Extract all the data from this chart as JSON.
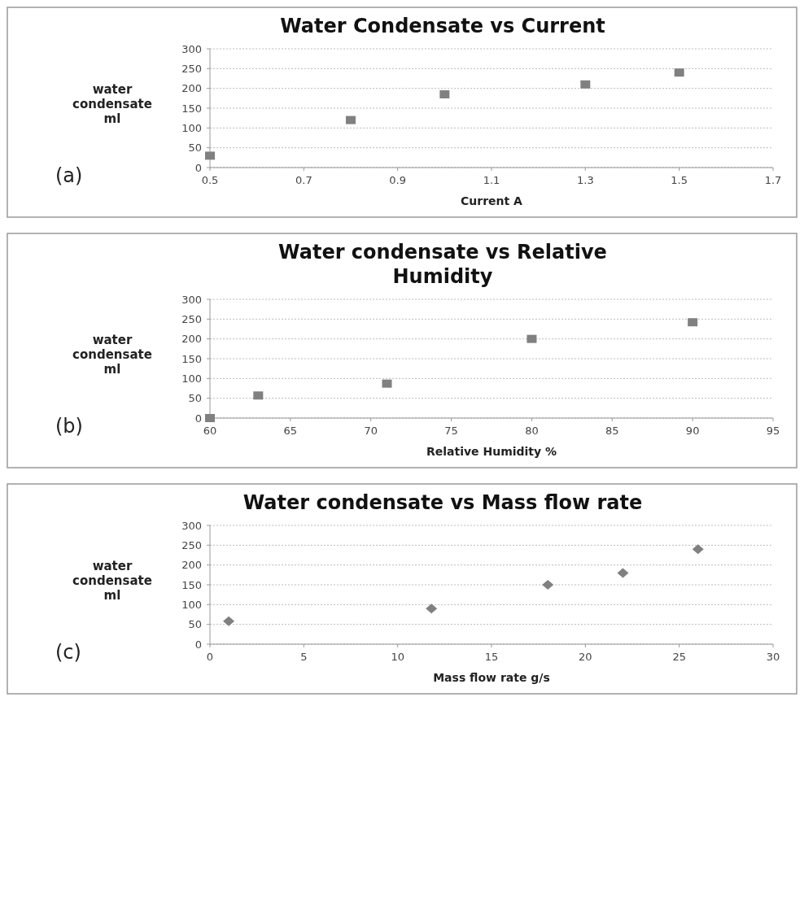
{
  "chart_data": [
    {
      "type": "scatter",
      "title": "Water Condensate vs Current",
      "xlabel": "Current A",
      "ylabel": "water condensate ml",
      "annotations": [
        "(a)"
      ],
      "x": [
        0.5,
        0.8,
        1.0,
        1.3,
        1.5
      ],
      "series": [
        {
          "color": "#808080",
          "values": [
            30,
            120,
            185,
            210,
            240
          ]
        }
      ],
      "marker": "square",
      "xlim": [
        0.5,
        1.7
      ],
      "xticks": [
        0.5,
        0.7,
        0.9,
        1.1,
        1.3,
        1.5,
        1.7
      ],
      "ylim": [
        0,
        300
      ],
      "yticks": [
        0,
        50,
        100,
        150,
        200,
        250,
        300
      ],
      "grid": "y"
    },
    {
      "type": "scatter",
      "title": "Water condensate vs Relative Humidity",
      "xlabel": "Relative Humidity %",
      "ylabel": "water condensate ml",
      "annotations": [
        "(b)"
      ],
      "x": [
        60,
        63,
        71,
        80,
        90
      ],
      "series": [
        {
          "color": "#808080",
          "values": [
            0,
            57,
            87,
            200,
            242
          ]
        }
      ],
      "marker": "square",
      "xlim": [
        60,
        95
      ],
      "xticks": [
        60,
        65,
        70,
        75,
        80,
        85,
        90,
        95
      ],
      "ylim": [
        0,
        300
      ],
      "yticks": [
        0,
        50,
        100,
        150,
        200,
        250,
        300
      ],
      "grid": "y"
    },
    {
      "type": "scatter",
      "title": "Water condensate vs Mass flow rate",
      "xlabel": "Mass flow rate g/s",
      "ylabel": "water condensate ml",
      "annotations": [
        "(c)"
      ],
      "x": [
        1,
        11.8,
        18,
        22,
        26
      ],
      "series": [
        {
          "color": "#808080",
          "values": [
            58,
            90,
            150,
            180,
            240
          ]
        }
      ],
      "marker": "diamond",
      "xlim": [
        0,
        30
      ],
      "xticks": [
        0,
        5,
        10,
        15,
        20,
        25,
        30
      ],
      "ylim": [
        0,
        300
      ],
      "yticks": [
        0,
        50,
        100,
        150,
        200,
        250,
        300
      ],
      "grid": "y"
    }
  ]
}
